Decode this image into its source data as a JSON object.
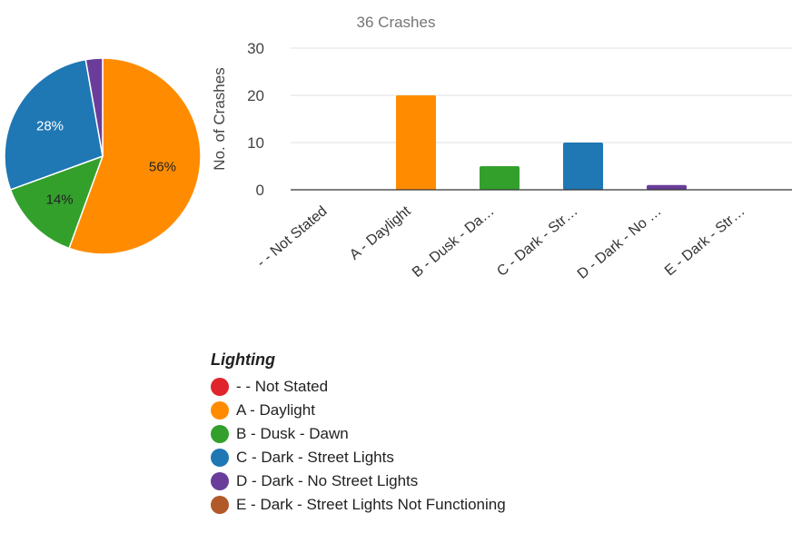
{
  "chart_data": [
    {
      "type": "pie",
      "categories": [
        "- - Not Stated",
        "A - Daylight",
        "B - Dusk - Dawn",
        "C - Dark - Street Lights",
        "D - Dark - No Street Lights",
        "E - Dark - Street Lights Not Functioning"
      ],
      "values": [
        0,
        20,
        5,
        10,
        1,
        0
      ],
      "slice_labels": [
        "",
        "56%",
        "14%",
        "28%",
        "",
        ""
      ],
      "colors": [
        "#e0242b",
        "#ff8c00",
        "#33a02c",
        "#1f77b4",
        "#6a3d9a",
        "#b15928"
      ]
    },
    {
      "type": "bar",
      "title": "36 Crashes",
      "ylabel": "No. of Crashes",
      "xlabel": "",
      "categories": [
        "- - Not Stated",
        "A - Daylight",
        "B - Dusk - Da…",
        "C - Dark - Str…",
        "D - Dark - No …",
        "E - Dark - Str…"
      ],
      "values": [
        0,
        20,
        5,
        10,
        1,
        0
      ],
      "ylim": [
        0,
        30
      ],
      "yticks": [
        0,
        10,
        20,
        30
      ],
      "colors": [
        "#e0242b",
        "#ff8c00",
        "#33a02c",
        "#1f77b4",
        "#6a3d9a",
        "#b15928"
      ],
      "grid": true
    }
  ],
  "legend": {
    "title": "Lighting",
    "items": [
      {
        "label": "- - Not Stated",
        "color": "#e0242b"
      },
      {
        "label": "A - Daylight",
        "color": "#ff8c00"
      },
      {
        "label": "B - Dusk - Dawn",
        "color": "#33a02c"
      },
      {
        "label": "C - Dark - Street Lights",
        "color": "#1f77b4"
      },
      {
        "label": "D - Dark - No Street Lights",
        "color": "#6a3d9a"
      },
      {
        "label": "E - Dark - Street Lights Not Functioning",
        "color": "#b15928"
      }
    ]
  }
}
